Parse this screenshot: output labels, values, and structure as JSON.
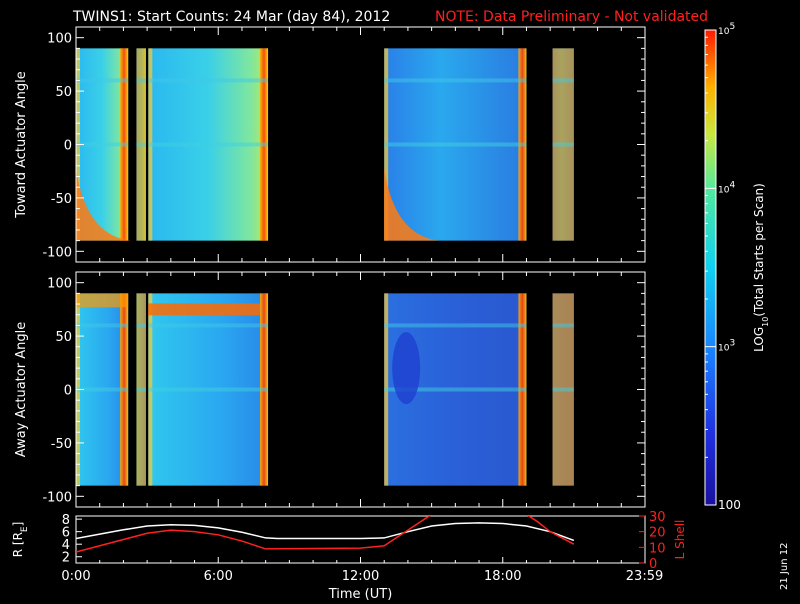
{
  "title": "TWINS1: Start Counts: 24 Mar (day  84), 2012",
  "note": "NOTE: Data Preliminary - Not validated",
  "date_stamp": "21 Jun 12",
  "colors": {
    "background": "#000000",
    "axes": "#ffffff",
    "note": "#ff2020",
    "lshell": "#ff2020",
    "radius": "#ffffff"
  },
  "chart_data": [
    {
      "type": "heatmap",
      "ylabel": "Toward Actuator Angle",
      "ylim": [
        -110,
        110
      ],
      "yticks": [
        100,
        50,
        0,
        -50,
        -100
      ],
      "xlim": [
        0,
        24
      ],
      "x_tick_values": [
        0,
        6,
        12,
        18,
        24
      ],
      "x_ticks": [
        "",
        "",
        "",
        "",
        ""
      ],
      "data_angle_range": [
        -90,
        90
      ],
      "coverage_hours": [
        [
          0,
          2.2
        ],
        [
          2.55,
          2.95
        ],
        [
          3.05,
          8.1
        ],
        [
          13,
          19
        ],
        [
          20.1,
          21
        ]
      ]
    },
    {
      "type": "heatmap",
      "ylabel": "Away Actuator Angle",
      "ylim": [
        -110,
        110
      ],
      "yticks": [
        100,
        50,
        0,
        -50,
        -100
      ],
      "xlim": [
        0,
        24
      ],
      "x_tick_values": [
        0,
        6,
        12,
        18,
        24
      ],
      "x_ticks": [
        "",
        "",
        "",
        "",
        ""
      ],
      "data_angle_range": [
        -90,
        90
      ],
      "coverage_hours": [
        [
          0,
          2.2
        ],
        [
          2.55,
          2.95
        ],
        [
          3.05,
          8.1
        ],
        [
          13,
          19
        ],
        [
          20.1,
          21
        ]
      ]
    },
    {
      "type": "line",
      "ylabel": "R [R",
      "ylabel_sub": "E",
      "ylabel_close": "]",
      "ylim": [
        1,
        8.5
      ],
      "yticks": [
        "2",
        "4",
        "6",
        "8"
      ],
      "ylabel2": "L Shell",
      "ylim2": [
        0,
        30
      ],
      "yticks2": [
        "0",
        "10",
        "20",
        "30"
      ],
      "xlabel": "Time (UT)",
      "xlim": [
        0,
        24
      ],
      "x_tick_values": [
        0,
        6,
        12,
        18,
        23.98
      ],
      "x_ticks": [
        "0:00",
        "6:00",
        "12:00",
        "18:00",
        "23:59"
      ],
      "series": [
        {
          "name": "",
          "axis": "left",
          "color": "#ffffff",
          "x": [
            0,
            1,
            2,
            3,
            4,
            5,
            6,
            7,
            8,
            8.5,
            10,
            12,
            13,
            14,
            15,
            16,
            17,
            18,
            19,
            20,
            21
          ],
          "y": [
            4.9,
            5.6,
            6.3,
            6.9,
            7.1,
            7.0,
            6.6,
            5.9,
            5.0,
            4.9,
            4.9,
            4.9,
            5.0,
            6.0,
            6.9,
            7.3,
            7.4,
            7.3,
            6.9,
            6.0,
            4.6
          ]
        },
        {
          "name": "",
          "axis": "right",
          "color": "#ff2020",
          "x": [
            0,
            1,
            2,
            3,
            4,
            5,
            6,
            7,
            8,
            12,
            13,
            14,
            14.5,
            15,
            19,
            19.5,
            20,
            21
          ],
          "y": [
            7,
            11,
            15,
            19,
            21,
            20,
            18,
            14,
            9,
            9.5,
            11,
            21,
            26,
            31,
            31,
            26,
            20,
            12
          ]
        }
      ]
    },
    {
      "type": "colorbar",
      "label": "LOG",
      "label_sub": "10",
      "label_rest": "(Total Starts per Scan)",
      "ticks": [
        {
          "base": "10",
          "exp": "5",
          "value": 100000
        },
        {
          "base": "10",
          "exp": "4",
          "value": 10000
        },
        {
          "base": "10",
          "exp": "3",
          "value": 1000
        },
        {
          "base": "100",
          "exp": "",
          "value": 100
        }
      ],
      "range": [
        100,
        100000
      ]
    }
  ]
}
